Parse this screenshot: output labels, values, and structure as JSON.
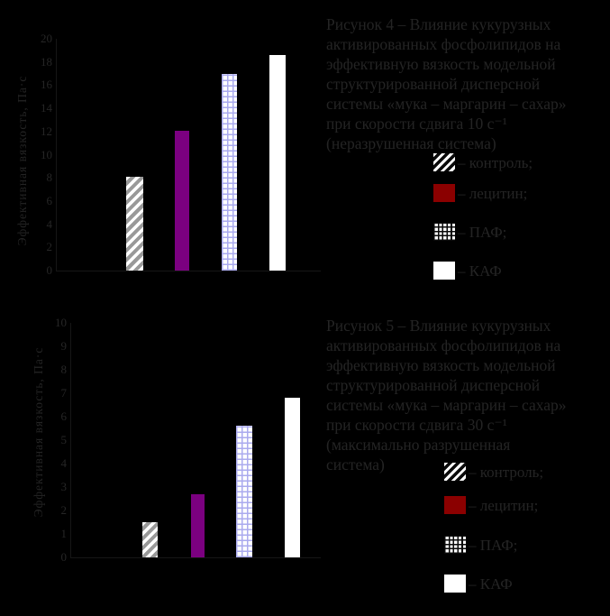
{
  "page": {
    "background": "#000000",
    "text_color": "#242424"
  },
  "colors": {
    "bar_purple": "#7B0080",
    "legend_red": "#8B0000",
    "grid_pattern_line": "#AAAAEE",
    "hatch_gray": "#999999",
    "bar_white": "#FFFFFF"
  },
  "figures": [
    {
      "id": "figure-4",
      "caption_lines": [
        "Рисунок 4 – Влияние кукурузных",
        "активированных фосфолипидов на",
        "эффективную вязкость модельной",
        "структурированной дисперсной",
        "системы «мука – маргарин – сахар»",
        "при скорости сдвига 10 с⁻¹",
        "(неразрушенная система)"
      ],
      "bar_patterns": [
        "hatch",
        "purple",
        "grid",
        "white"
      ],
      "legend": [
        {
          "pattern": "hatch",
          "label": "– контроль;"
        },
        {
          "pattern": "red",
          "label": "– лецитин;"
        },
        {
          "pattern": "grid",
          "label": "– ПАФ;"
        },
        {
          "pattern": "white",
          "label": "– КАФ"
        }
      ]
    },
    {
      "id": "figure-5",
      "caption_lines": [
        "Рисунок 5 – Влияние кукурузных",
        "активированных фосфолипидов на",
        "эффективную вязкость модельной",
        "структурированной дисперсной",
        "системы «мука – маргарин – сахар»",
        "при скорости сдвига 30 с⁻¹",
        "(максимально разрушенная",
        "система)"
      ],
      "bar_patterns": [
        "hatch",
        "purple",
        "grid",
        "white"
      ],
      "legend": [
        {
          "pattern": "hatch",
          "label": "– контроль;"
        },
        {
          "pattern": "red",
          "label": "– лецитин;"
        },
        {
          "pattern": "grid",
          "label": "– ПАФ;"
        },
        {
          "pattern": "white",
          "label": "– КАФ"
        }
      ]
    }
  ],
  "chart_data": [
    {
      "type": "bar",
      "title": "Рисунок 4 – Влияние кукурузных активированных фосфолипидов на эффективную вязкость модельной структурированной дисперсной системы «мука – маргарин – сахар» при скорости сдвига 10 с⁻¹ (неразрушенная система)",
      "categories": [
        "контроль",
        "лецитин",
        "ПАФ",
        "КАФ"
      ],
      "values": [
        8.1,
        12.1,
        17.0,
        18.6
      ],
      "xlabel": "",
      "ylabel": "Эффективная вязкость, Па·с",
      "ylim": [
        0,
        20
      ],
      "ytick_step": 2,
      "grid": false,
      "legend_position": "right",
      "legend_entries": [
        "контроль",
        "лецитин",
        "ПАФ",
        "КАФ"
      ]
    },
    {
      "type": "bar",
      "title": "Рисунок 5 – Влияние кукурузных активированных фосфолипидов на эффективную вязкость модельной структурированной дисперсной системы «мука – маргарин – сахар» при скорости сдвига 30 с⁻¹ (максимально разрушенная система)",
      "categories": [
        "контроль",
        "лецитин",
        "ПАФ",
        "КАФ"
      ],
      "values": [
        1.5,
        2.7,
        5.6,
        6.8
      ],
      "xlabel": "",
      "ylabel": "Эффективная вязкость, Па·с",
      "ylim": [
        0,
        10
      ],
      "ytick_step": 1,
      "grid": false,
      "legend_position": "right",
      "legend_entries": [
        "контроль",
        "лецитин",
        "ПАФ",
        "КАФ"
      ]
    }
  ]
}
